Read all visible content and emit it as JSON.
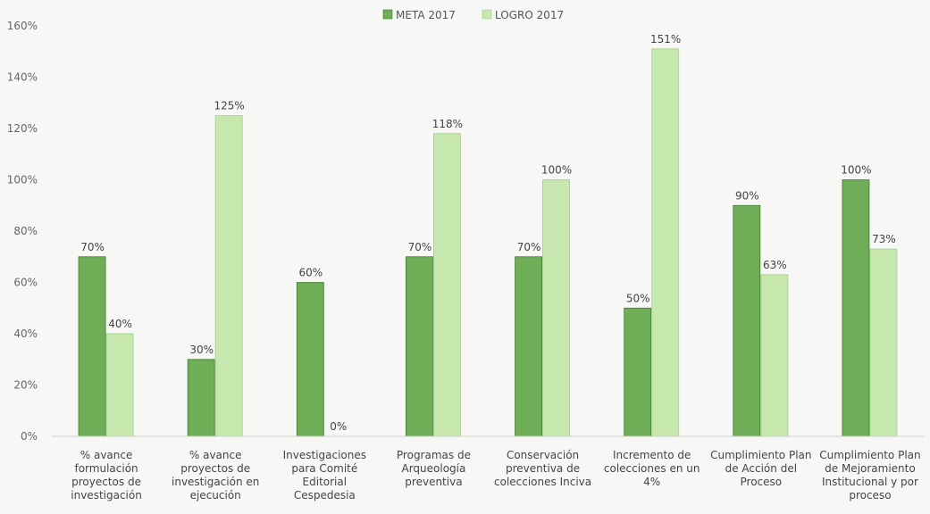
{
  "chart_data": {
    "type": "bar",
    "title": "",
    "xlabel": "",
    "ylabel": "",
    "ylim": [
      0,
      160
    ],
    "y_tick_step": 20,
    "y_tick_format": "percent",
    "grid": false,
    "legend_position": "top-center",
    "categories": [
      [
        "% avance",
        "formulación",
        "proyectos de",
        "investigación"
      ],
      [
        "% avance",
        "proyectos de",
        "investigación en",
        "ejecución"
      ],
      [
        "Investigaciones",
        "para Comité",
        "Editorial",
        "Cespedesia"
      ],
      [
        "Programas de",
        "Arqueología",
        "preventiva"
      ],
      [
        "Conservación",
        "preventiva de",
        "colecciones Inciva"
      ],
      [
        "Incremento de",
        "colecciones en un",
        "4%"
      ],
      [
        "Cumplimiento Plan",
        "de Acción del",
        "Proceso"
      ],
      [
        "Cumplimiento Plan",
        "de Mejoramiento",
        "Institucional y por",
        "proceso"
      ]
    ],
    "series": [
      {
        "name": "META 2017",
        "color": "#70ad57",
        "values": [
          70,
          30,
          60,
          70,
          70,
          50,
          90,
          100
        ],
        "labels": [
          "70%",
          "30%",
          "60%",
          "70%",
          "70%",
          "50%",
          "90%",
          "100%"
        ]
      },
      {
        "name": "LOGRO 2017",
        "color": "#c6e7ae",
        "values": [
          40,
          125,
          0,
          118,
          100,
          151,
          63,
          73
        ],
        "labels": [
          "40%",
          "125%",
          "0%",
          "118%",
          "100%",
          "151%",
          "63%",
          "73%"
        ]
      }
    ]
  }
}
